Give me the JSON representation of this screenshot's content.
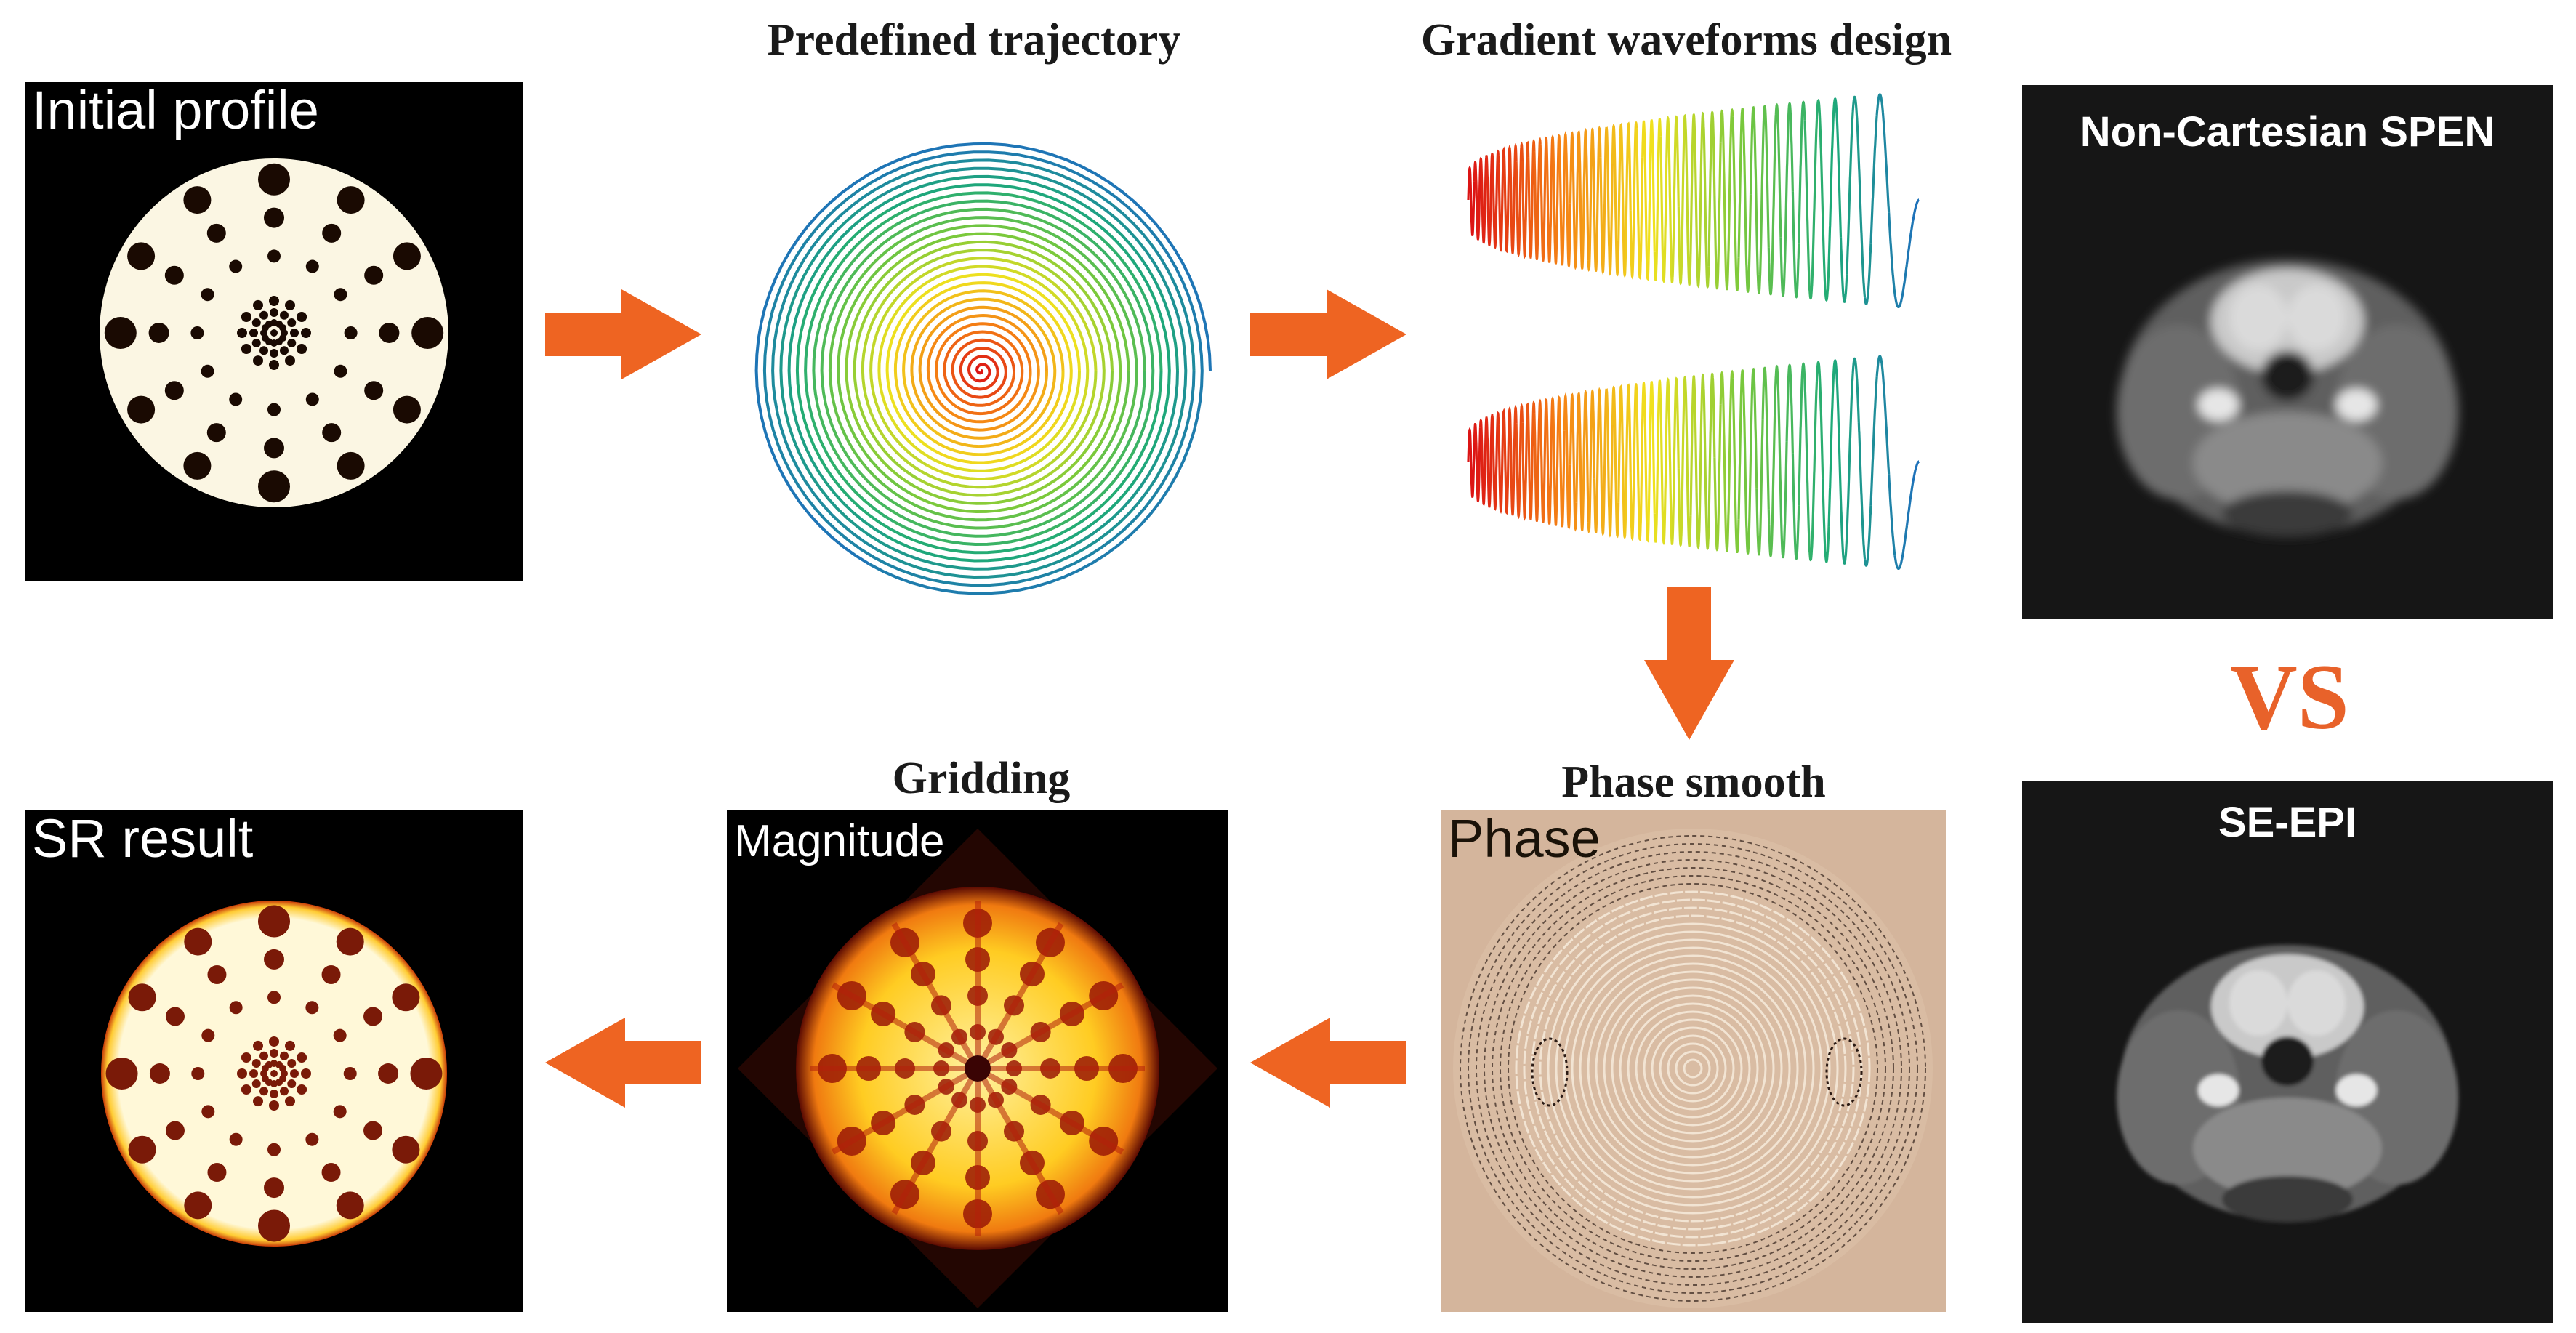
{
  "panels": {
    "initial_profile": {
      "label": "Initial profile"
    },
    "magnitude": {
      "label": "Magnitude"
    },
    "phase": {
      "label": "Phase"
    },
    "sr_result": {
      "label": "SR result"
    }
  },
  "steps": {
    "trajectory": "Predefined trajectory",
    "gradient": "Gradient waveforms design",
    "gridding": "Gridding",
    "phase_smooth": "Phase smooth"
  },
  "comparison": {
    "top_title": "Non-Cartesian SPEN",
    "bottom_title": "SE-EPI",
    "vs_label": "VS"
  },
  "colors": {
    "arrow": "#ee6422",
    "vs": "#e8622a",
    "panel_bg": "#000000",
    "phantom_fill": "#fbf6e3",
    "phase_bg": "#d4b59c",
    "mri_bg": "#161616"
  },
  "icons": {
    "flow_arrow": "orange-block-arrow",
    "spiral": "rainbow-spiral",
    "waveform": "rainbow-chirp-waveform"
  }
}
